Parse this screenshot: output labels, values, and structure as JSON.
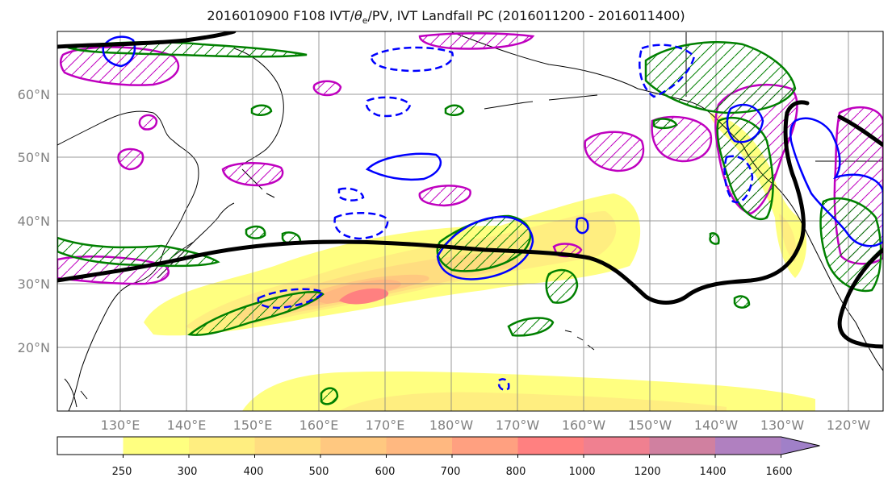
{
  "title": {
    "prefix": "2016010900 F108 IVT/",
    "theta_symbol": "θ",
    "theta_sub": "e",
    "suffix": "/PV, IVT Landfall PC (2016011200 - 2016011400)"
  },
  "map": {
    "lon_labels": [
      "130°E",
      "140°E",
      "150°E",
      "160°E",
      "170°E",
      "180°W",
      "170°W",
      "160°W",
      "150°W",
      "140°W",
      "130°W",
      "120°W"
    ],
    "lat_labels": [
      "60°N",
      "50°N",
      "40°N",
      "30°N",
      "20°N"
    ],
    "colors": {
      "coastline": "#000000",
      "gridline": "#808080",
      "pc_contour": "#000000",
      "theta_e_contour": "#008000",
      "pv_contour": "#0000ff",
      "magenta_contour": "#bf00bf"
    }
  },
  "colorbar": {
    "ticks": [
      "250",
      "300",
      "400",
      "500",
      "600",
      "700",
      "800",
      "1000",
      "1200",
      "1400",
      "1600"
    ],
    "colors": [
      "#ffffff",
      "#ffff80",
      "#ffee80",
      "#ffdd80",
      "#ffc880",
      "#ffb880",
      "#ffa080",
      "#ff8080",
      "#f08090",
      "#d080a0",
      "#b080c0",
      "#a080c8"
    ],
    "extend": "max"
  }
}
